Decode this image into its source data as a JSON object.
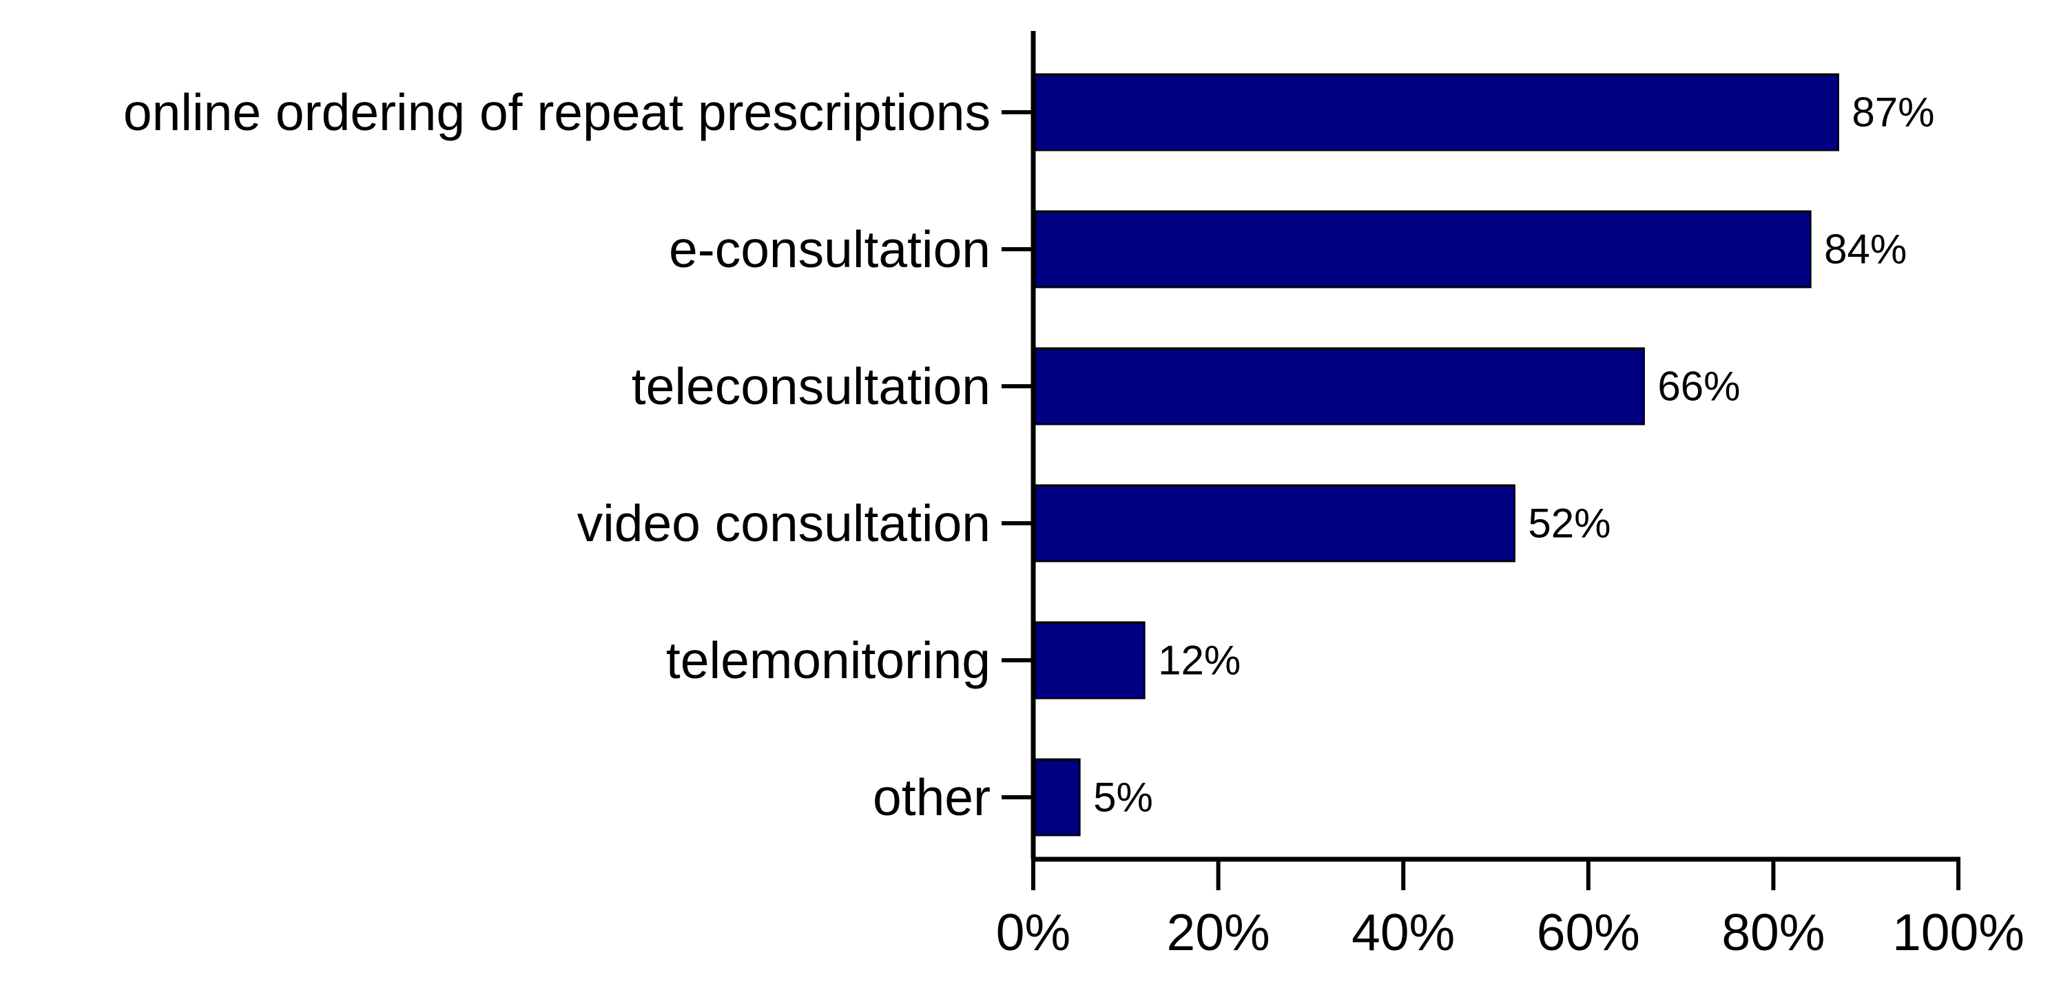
{
  "chart_data": {
    "type": "bar",
    "orientation": "horizontal",
    "categories": [
      "online ordering of repeat prescriptions",
      "e-consultation",
      "teleconsultation",
      "video consultation",
      "telemonitoring",
      "other"
    ],
    "values": [
      87,
      84,
      66,
      52,
      12,
      5
    ],
    "value_labels": [
      "87%",
      "84%",
      "66%",
      "52%",
      "12%",
      "5%"
    ],
    "title": "",
    "xlabel": "",
    "ylabel": "",
    "xlim": [
      0,
      100
    ],
    "x_ticks": [
      0,
      20,
      40,
      60,
      80,
      100
    ],
    "x_tick_labels": [
      "0%",
      "20%",
      "40%",
      "60%",
      "80%",
      "100%"
    ],
    "grid": false,
    "bar_color": "#000080",
    "bar_edge_color": "#000000"
  }
}
